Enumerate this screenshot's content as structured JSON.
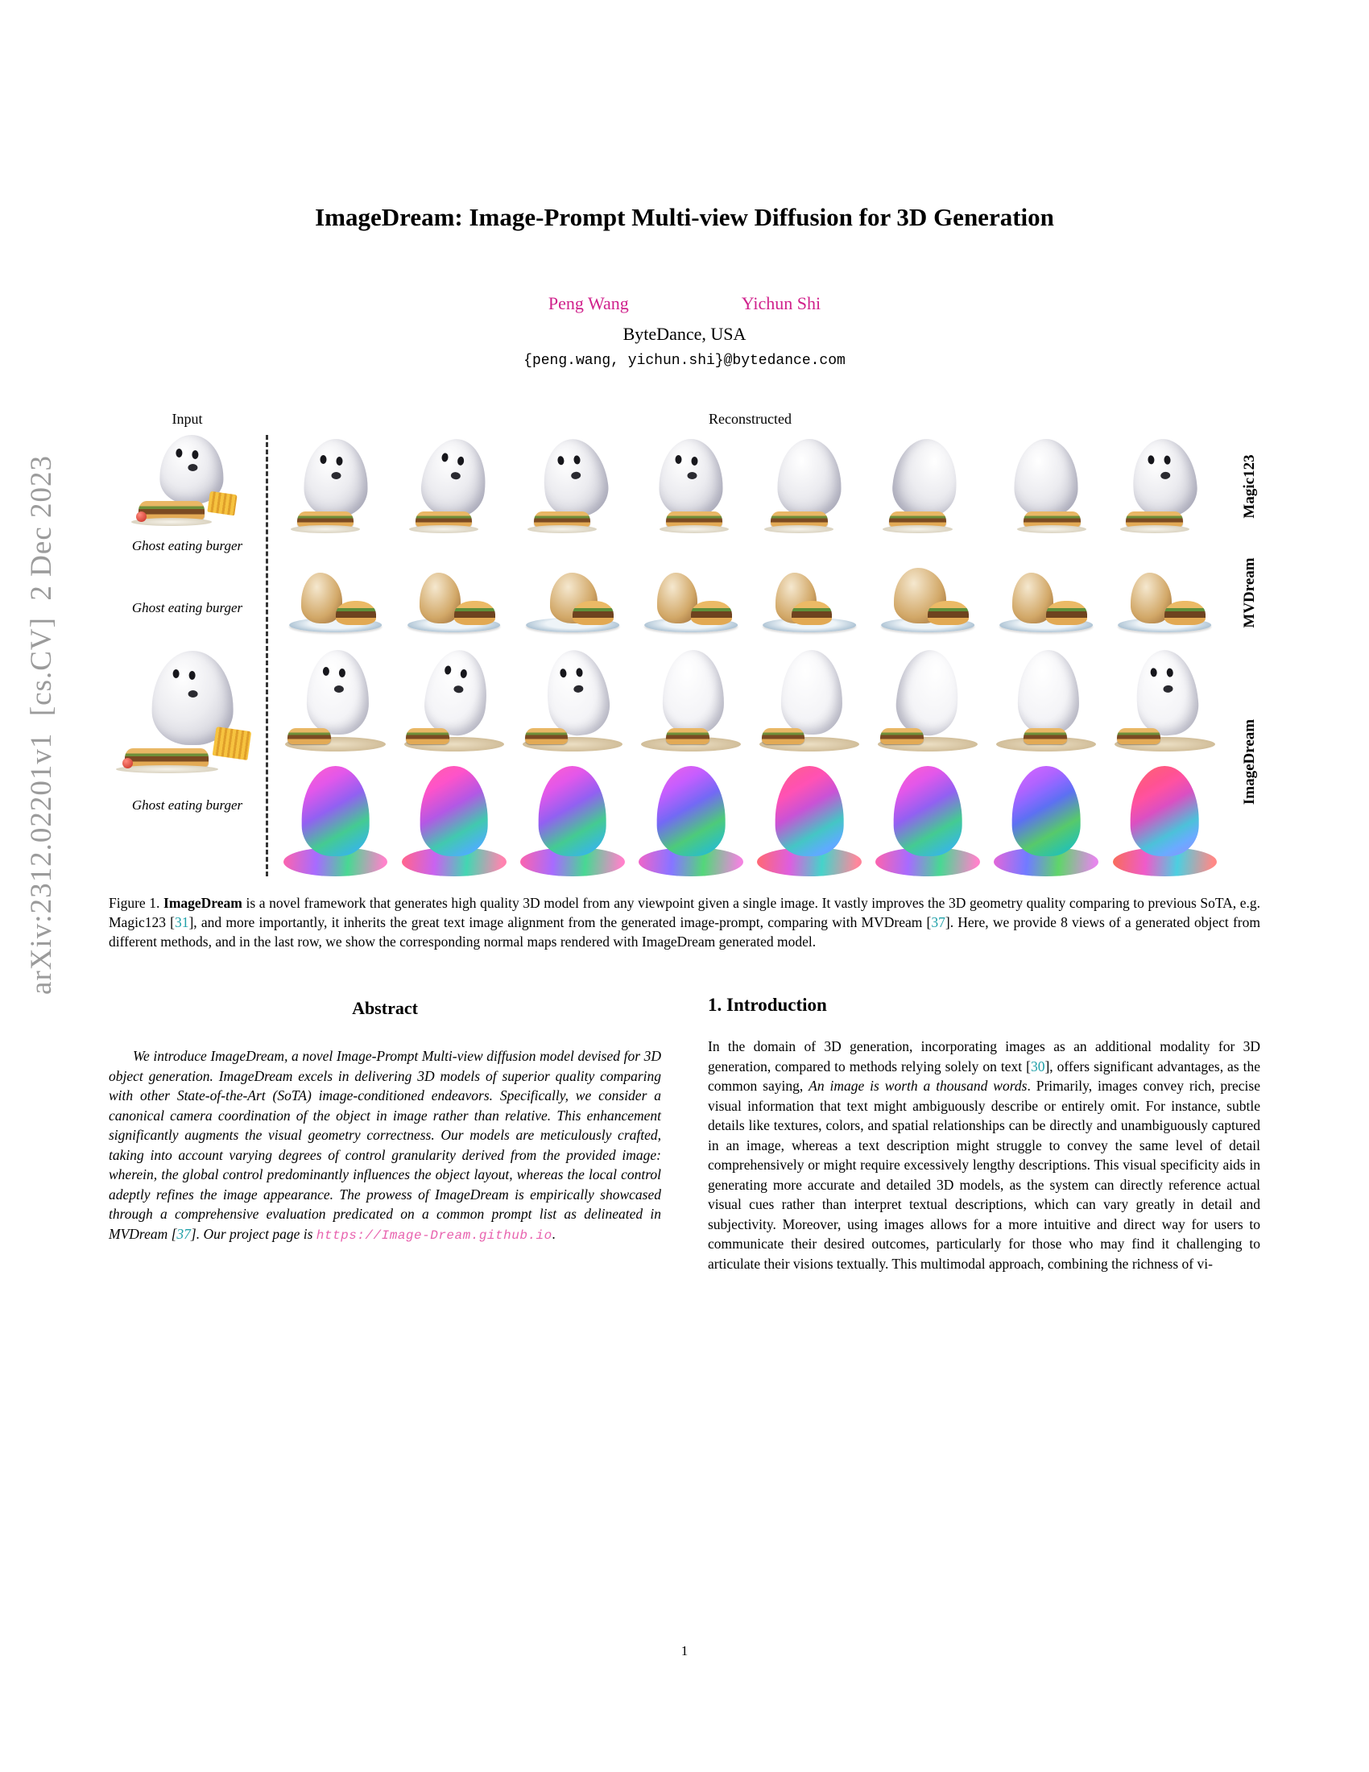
{
  "arxiv_stamp": "arXiv:2312.02201v1  [cs.CV]  2 Dec 2023",
  "page": {
    "number": "1"
  },
  "colors": {
    "author": "#d0218c",
    "cite": "#1fa0a8",
    "link": "#e862ae",
    "stamp": "#9b9b9b"
  },
  "header": {
    "title": "ImageDream: Image-Prompt Multi-view Diffusion for 3D Generation",
    "authors": [
      "Peng Wang",
      "Yichun Shi"
    ],
    "affiliation": "ByteDance, USA",
    "email": "{peng.wang, yichun.shi}@bytedance.com"
  },
  "figure": {
    "col_input": "Input",
    "col_reconstructed": "Reconstructed",
    "inputs": [
      {
        "caption": "Ghost eating burger",
        "has_image": true
      },
      {
        "caption": "Ghost eating burger",
        "has_image": false
      },
      {
        "caption": "Ghost eating burger",
        "has_image": true
      }
    ],
    "rows": [
      {
        "label": "Magic123",
        "type": "magic",
        "views": 8
      },
      {
        "label": "MVDream",
        "type": "mvdream",
        "views": 8
      },
      {
        "label": "ImageDream",
        "type": "imagedream",
        "views": 8
      },
      {
        "label": "",
        "type": "normal",
        "views": 8
      }
    ],
    "caption": {
      "parts": [
        {
          "t": "Figure 1.  ",
          "s": "text"
        },
        {
          "t": "ImageDream",
          "s": "bold"
        },
        {
          "t": " is a novel framework that generates high quality 3D model from any viewpoint given a single image. It vastly improves the 3D geometry quality comparing to previous SoTA, e.g. Magic123 [",
          "s": "text"
        },
        {
          "t": "31",
          "s": "cite"
        },
        {
          "t": "], and more importantly, it inherits the great text image alignment from the generated image-prompt, comparing with MVDream [",
          "s": "text"
        },
        {
          "t": "37",
          "s": "cite"
        },
        {
          "t": "]. Here, we provide 8 views of a generated object from different methods, and in the last row, we show the corresponding normal maps rendered with ImageDream generated model.",
          "s": "text"
        }
      ]
    }
  },
  "abstract": {
    "heading": "Abstract",
    "parts": [
      {
        "t": "We introduce ImageDream, a novel Image-Prompt Multi-view diffusion model devised for 3D object generation. ImageDream excels in delivering 3D models of superior quality comparing with other State-of-the-Art (SoTA) image-conditioned endeavors. Specifically, we consider a canonical camera coordination of the object in image rather than relative. This enhancement significantly augments the visual geometry correctness. Our models are meticulously crafted, taking into account varying degrees of control granularity derived from the provided image: wherein, the global control predominantly influences the object layout, whereas the local control adeptly refines the image appearance. The prowess of ImageDream is empirically showcased through a comprehensive evaluation predicated on a common prompt list as delineated in MVDream [",
        "s": "text"
      },
      {
        "t": "37",
        "s": "cite"
      },
      {
        "t": "]. Our project page is ",
        "s": "text"
      },
      {
        "t": "https://Image-Dream.github.io",
        "s": "link"
      },
      {
        "t": ".",
        "s": "text"
      }
    ]
  },
  "intro": {
    "heading": "1. Introduction",
    "parts": [
      {
        "t": "In the domain of 3D generation, incorporating images as an additional modality for 3D generation, compared to methods relying solely on text [",
        "s": "text"
      },
      {
        "t": "30",
        "s": "cite"
      },
      {
        "t": "], offers significant advantages, as the common saying, ",
        "s": "text"
      },
      {
        "t": "An image is worth a thousand words",
        "s": "italic"
      },
      {
        "t": ". Primarily, images convey rich, precise visual information that text might ambiguously describe or entirely omit. For instance, subtle details like textures, colors, and spatial relationships can be directly and unambiguously captured in an image, whereas a text description might struggle to convey the same level of detail comprehensively or might require excessively lengthy descriptions. This visual specificity aids in generating more accurate and detailed 3D models, as the system can directly reference actual visual cues rather than interpret textual descriptions, which can vary greatly in detail and subjectivity. Moreover, using images allows for a more intuitive and direct way for users to communicate their desired outcomes, particularly for those who may find it challenging to articulate their visions textually. This multimodal approach, combining the richness of vi-",
        "s": "text"
      }
    ]
  }
}
